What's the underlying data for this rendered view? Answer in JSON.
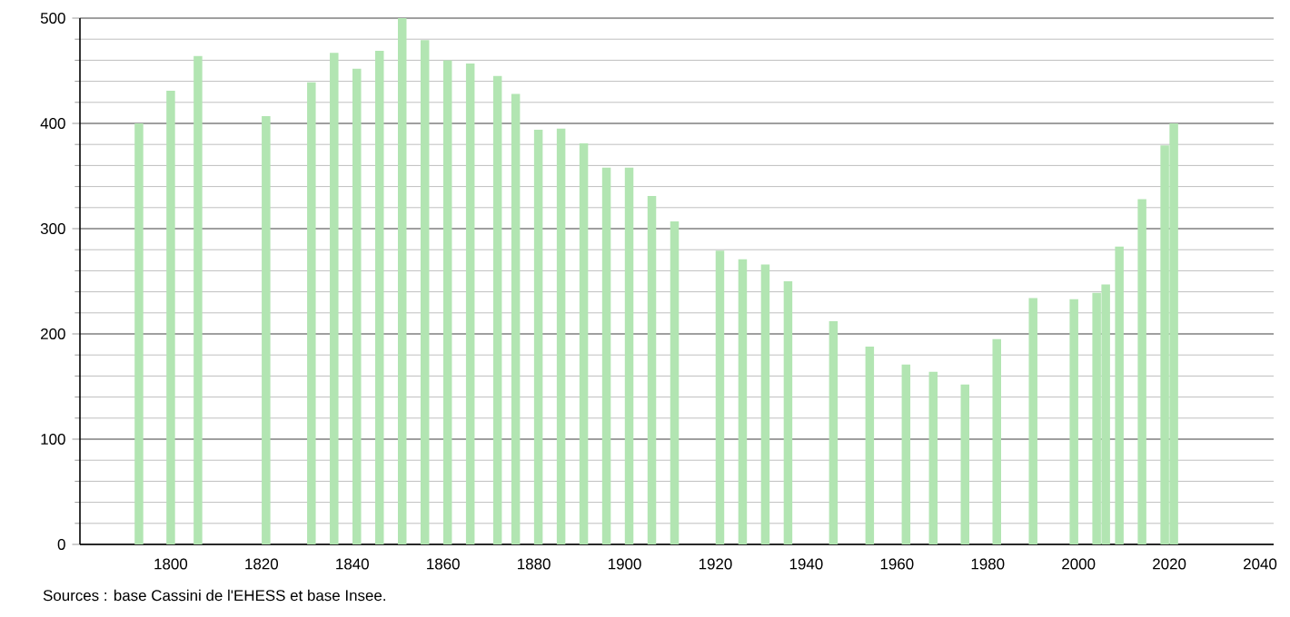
{
  "chart_data": {
    "type": "bar",
    "x": [
      1793,
      1800,
      1806,
      1821,
      1831,
      1836,
      1841,
      1846,
      1851,
      1856,
      1861,
      1866,
      1872,
      1876,
      1881,
      1886,
      1891,
      1896,
      1901,
      1906,
      1911,
      1921,
      1926,
      1931,
      1936,
      1946,
      1954,
      1962,
      1968,
      1975,
      1982,
      1990,
      1999,
      2004,
      2006,
      2009,
      2014,
      2019,
      2021
    ],
    "values": [
      400,
      431,
      464,
      407,
      439,
      467,
      452,
      469,
      500,
      479,
      460,
      457,
      445,
      428,
      394,
      395,
      381,
      358,
      358,
      331,
      307,
      279,
      271,
      266,
      250,
      212,
      188,
      171,
      164,
      152,
      195,
      234,
      233,
      239,
      247,
      283,
      328,
      379,
      400
    ],
    "color": "#b2e5b2",
    "xlim": [
      1780,
      2043
    ],
    "xticks": [
      1800,
      1820,
      1840,
      1860,
      1880,
      1900,
      1920,
      1940,
      1960,
      1980,
      2000,
      2020,
      2040
    ],
    "ylim": [
      0,
      500
    ],
    "yticks": [
      0,
      100,
      200,
      300,
      400,
      500
    ],
    "grid": "y",
    "annotations": [
      "Sources : base Cassini de l'EHESS et base Insee."
    ]
  }
}
